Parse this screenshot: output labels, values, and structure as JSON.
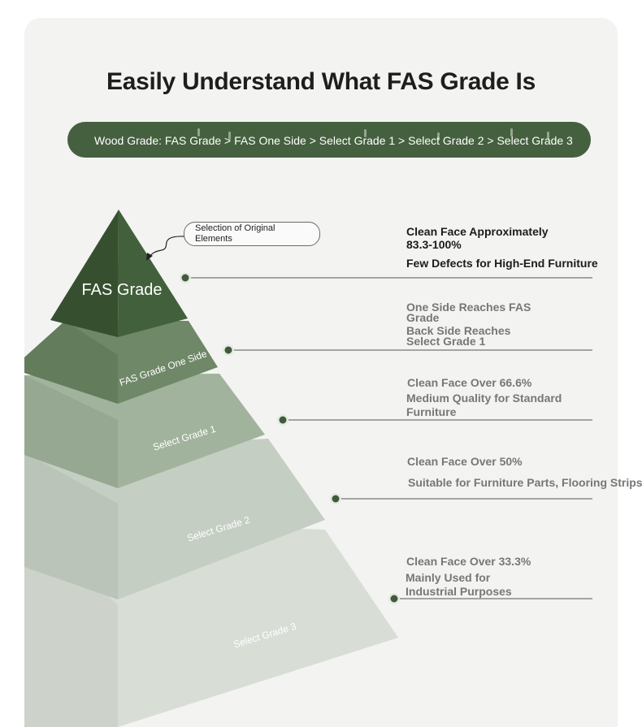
{
  "title": "Easily Understand What FAS Grade Is",
  "banner": {
    "text": "Wood Grade: FAS Grade > FAS One Side > Select Grade 1 > Select Grade 2 > Select Grade 3"
  },
  "callout": {
    "text": "Selection of Original Elements"
  },
  "tiers": [
    {
      "label": "FAS Grade",
      "color": "#3f5b39"
    },
    {
      "label": "FAS Grade One Side",
      "color": "#6b8464"
    },
    {
      "label": "Select Grade 1",
      "color": "#98ab93"
    },
    {
      "label": "Select Grade 2",
      "color": "#bfc9bd"
    },
    {
      "label": "Select Grade 3",
      "color": "#d3d9d1"
    }
  ],
  "descriptions": [
    {
      "line1": "Clean Face Approximately",
      "line2": "83.3-100%",
      "line3": "Few Defects for High-End Furniture"
    },
    {
      "line1": "One Side Reaches FAS",
      "line2": "Grade",
      "line3": "Back Side Reaches",
      "line4": "Select Grade 1"
    },
    {
      "line1": "Clean Face Over 66.6%",
      "line2": "Medium Quality for Standard",
      "line3": "Furniture"
    },
    {
      "line1": "Clean Face Over 50%",
      "line2": "Suitable for Furniture Parts, Flooring Strips"
    },
    {
      "line1": "Clean Face Over 33.3%",
      "line2": "Mainly Used for",
      "line3": "Industrial Purposes"
    }
  ],
  "colors": {
    "accent": "#45603f",
    "dot": "#3f5b39",
    "line": "#555555"
  }
}
